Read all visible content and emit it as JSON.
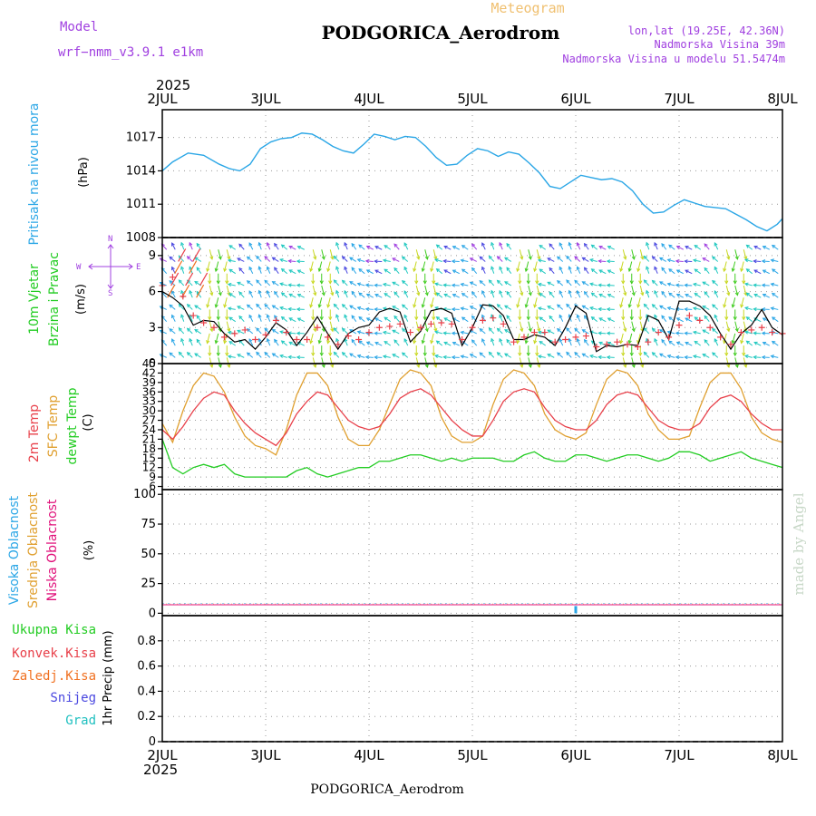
{
  "header": {
    "model_label": "Model",
    "model_name": "wrf−nmm_v3.9.1 e1km",
    "product": "Meteogram",
    "station": "PODGORICA_Aerodrom",
    "coords": "lon,lat (19.25E, 42.36N)",
    "elevation": "Nadmorska Visina 39m",
    "model_elevation": "Nadmorska Visina u modelu 51.5474m",
    "year_top": "2025",
    "year_bottom": "2025",
    "footer_station": "PODGORICA_Aerodrom",
    "credit": "made by Angel"
  },
  "colors": {
    "pressure": "#2aa6e6",
    "temp_2m": "#e8404a",
    "sfc_temp": "#e0a030",
    "dewpoint": "#22cc22",
    "wind_speed": "#000000",
    "gust": "#e8404a",
    "high_cloud": "#2aa6e6",
    "mid_cloud": "#e0a030",
    "low_cloud": "#e0107a",
    "total_precip": "#22cc22",
    "conv_precip": "#e8404a",
    "frozen_precip": "#f07020",
    "snow": "#4a48e0",
    "graupel": "#20c0c0",
    "dir_legend": "#a040e0",
    "credit": "#c8d8c8"
  },
  "x_axis": {
    "tick_labels": [
      "2JUL",
      "3JUL",
      "4JUL",
      "5JUL",
      "6JUL",
      "7JUL",
      "8JUL"
    ]
  },
  "panels": {
    "pressure": {
      "label": "Pritisak na nivou mora",
      "unit": "(hPa)",
      "ticks": [
        1008,
        1011,
        1014,
        1017
      ]
    },
    "wind": {
      "label1": "10m Vjetar",
      "label2": "Brzina i Pravac",
      "unit": "(m/s)",
      "ticks": [
        0,
        3,
        6,
        9
      ],
      "dir_labels": {
        "n": "N",
        "s": "S",
        "e": "E",
        "w": "W"
      }
    },
    "temperature": {
      "label_2m": "2m Temp",
      "label_sfc": "SFC Temp",
      "label_dew": "dewpt Temp",
      "unit": "(C)",
      "ticks": [
        6,
        9,
        12,
        15,
        18,
        21,
        24,
        27,
        30,
        33,
        36,
        39,
        42,
        45
      ]
    },
    "cloud": {
      "label_high": "Visoka Oblacnost",
      "label_mid": "Srednja Oblacnost",
      "label_low": "Niska Oblacnost",
      "unit": "(%)",
      "ticks": [
        0,
        25,
        50,
        75,
        100
      ]
    },
    "precip": {
      "legend_total": "Ukupna Kisa",
      "legend_conv": "Konvek.Kisa",
      "legend_frozen": "Zaledj.Kisa",
      "legend_snow": "Snijeg",
      "legend_graupel": "Grad",
      "unit": "1hr Precip (mm)",
      "ticks": [
        0,
        0.2,
        0.4,
        0.6,
        0.8
      ]
    }
  },
  "chart_data": [
    {
      "type": "line",
      "name": "pressure",
      "x_range": [
        0,
        6
      ],
      "ylim": [
        1008,
        1019.5
      ],
      "x": [
        0,
        0.1,
        0.25,
        0.4,
        0.55,
        0.65,
        0.75,
        0.85,
        0.95,
        1.05,
        1.15,
        1.25,
        1.35,
        1.45,
        1.55,
        1.65,
        1.75,
        1.85,
        1.95,
        2.05,
        2.15,
        2.25,
        2.35,
        2.45,
        2.55,
        2.65,
        2.75,
        2.85,
        2.95,
        3.05,
        3.15,
        3.25,
        3.35,
        3.45,
        3.55,
        3.65,
        3.75,
        3.85,
        3.95,
        4.05,
        4.15,
        4.25,
        4.35,
        4.45,
        4.55,
        4.65,
        4.75,
        4.85,
        4.95,
        5.05,
        5.15,
        5.25,
        5.35,
        5.45,
        5.55,
        5.65,
        5.75,
        5.85,
        5.95,
        6.0
      ],
      "series": [
        {
          "values": [
            1014.0,
            1014.8,
            1015.6,
            1015.4,
            1014.6,
            1014.2,
            1014.0,
            1014.6,
            1016.0,
            1016.6,
            1016.9,
            1017.0,
            1017.4,
            1017.3,
            1016.8,
            1016.2,
            1015.8,
            1015.6,
            1016.4,
            1017.3,
            1017.1,
            1016.8,
            1017.1,
            1017.0,
            1016.2,
            1015.2,
            1014.5,
            1014.6,
            1015.4,
            1016.0,
            1015.8,
            1015.3,
            1015.7,
            1015.5,
            1014.7,
            1013.8,
            1012.6,
            1012.4,
            1013.0,
            1013.6,
            1013.4,
            1013.2,
            1013.3,
            1013.0,
            1012.2,
            1011.0,
            1010.2,
            1010.3,
            1010.9,
            1011.4,
            1011.1,
            1010.8,
            1010.7,
            1010.6,
            1010.1,
            1009.6,
            1009.0,
            1008.6,
            1009.2,
            1009.7
          ]
        }
      ]
    },
    {
      "type": "line",
      "name": "temperature",
      "x_range": [
        0,
        6
      ],
      "ylim": [
        5,
        45
      ],
      "x": [
        0,
        0.1,
        0.2,
        0.3,
        0.4,
        0.5,
        0.6,
        0.7,
        0.8,
        0.9,
        1.0,
        1.1,
        1.2,
        1.3,
        1.4,
        1.5,
        1.6,
        1.7,
        1.8,
        1.9,
        2.0,
        2.1,
        2.2,
        2.3,
        2.4,
        2.5,
        2.6,
        2.7,
        2.8,
        2.9,
        3.0,
        3.1,
        3.2,
        3.3,
        3.4,
        3.5,
        3.6,
        3.7,
        3.8,
        3.9,
        4.0,
        4.1,
        4.2,
        4.3,
        4.4,
        4.5,
        4.6,
        4.7,
        4.8,
        4.9,
        5.0,
        5.1,
        5.2,
        5.3,
        5.4,
        5.5,
        5.6,
        5.7,
        5.8,
        5.9,
        6.0
      ],
      "series": [
        {
          "name": "2m Temp",
          "values": [
            24,
            21,
            25,
            30,
            34,
            36,
            35,
            30,
            26,
            23,
            21,
            19,
            23,
            29,
            33,
            36,
            35,
            31,
            27,
            25,
            24,
            25,
            29,
            34,
            36,
            37,
            35,
            31,
            27,
            24,
            22,
            22,
            27,
            33,
            36,
            37,
            36,
            31,
            27,
            25,
            24,
            24,
            27,
            32,
            35,
            36,
            35,
            31,
            27,
            25,
            24,
            24,
            26,
            31,
            34,
            35,
            33,
            29,
            26,
            24,
            24
          ]
        },
        {
          "name": "SFC Temp",
          "values": [
            26,
            20,
            30,
            38,
            42,
            41,
            36,
            28,
            22,
            19,
            18,
            16,
            24,
            35,
            42,
            42,
            38,
            28,
            21,
            19,
            19,
            24,
            32,
            40,
            43,
            42,
            38,
            28,
            22,
            20,
            20,
            22,
            32,
            40,
            43,
            42,
            38,
            29,
            24,
            22,
            21,
            23,
            32,
            40,
            43,
            42,
            38,
            29,
            24,
            21,
            21,
            22,
            31,
            39,
            42,
            42,
            37,
            28,
            23,
            21,
            20
          ]
        },
        {
          "name": "dewpt Temp",
          "values": [
            21,
            12,
            10,
            12,
            13,
            12,
            13,
            10,
            9,
            9,
            9,
            9,
            9,
            11,
            12,
            10,
            9,
            10,
            11,
            12,
            12,
            14,
            14,
            15,
            16,
            16,
            15,
            14,
            15,
            14,
            15,
            15,
            15,
            14,
            14,
            16,
            17,
            15,
            14,
            14,
            16,
            16,
            15,
            14,
            15,
            16,
            16,
            15,
            14,
            15,
            17,
            17,
            16,
            14,
            15,
            16,
            17,
            15,
            14,
            13,
            12
          ]
        }
      ]
    },
    {
      "type": "line",
      "name": "wind_speed",
      "x_range": [
        0,
        6
      ],
      "ylim": [
        0,
        10.5
      ],
      "x": [
        0,
        0.1,
        0.2,
        0.3,
        0.4,
        0.5,
        0.6,
        0.7,
        0.8,
        0.9,
        1.0,
        1.1,
        1.2,
        1.3,
        1.4,
        1.5,
        1.6,
        1.7,
        1.8,
        1.9,
        2.0,
        2.1,
        2.2,
        2.3,
        2.4,
        2.5,
        2.6,
        2.7,
        2.8,
        2.9,
        3.0,
        3.1,
        3.2,
        3.3,
        3.4,
        3.5,
        3.6,
        3.7,
        3.8,
        3.9,
        4.0,
        4.1,
        4.2,
        4.3,
        4.4,
        4.5,
        4.6,
        4.7,
        4.8,
        4.9,
        5.0,
        5.1,
        5.2,
        5.3,
        5.4,
        5.5,
        5.6,
        5.7,
        5.8,
        5.9,
        6.0
      ],
      "series": [
        {
          "name": "speed",
          "values": [
            6.0,
            5.5,
            4.8,
            3.2,
            3.6,
            3.5,
            2.5,
            1.8,
            2.0,
            1.2,
            2.2,
            3.4,
            2.8,
            1.5,
            2.6,
            3.9,
            2.5,
            1.2,
            2.5,
            3.0,
            3.2,
            4.3,
            4.6,
            4.3,
            1.8,
            2.7,
            4.4,
            4.6,
            4.2,
            1.5,
            3.0,
            4.9,
            4.8,
            4.0,
            2.0,
            2.0,
            2.4,
            2.2,
            1.5,
            3.0,
            4.8,
            4.2,
            1.0,
            1.5,
            1.4,
            1.6,
            1.5,
            4.0,
            3.6,
            2.0,
            5.2,
            5.2,
            4.8,
            4.0,
            2.5,
            1.2,
            2.5,
            3.2,
            4.5,
            3.0,
            2.4
          ]
        },
        {
          "name": "gust",
          "values": [
            6.5,
            7.2,
            5.6,
            4.0,
            3.4,
            3.0,
            2.2,
            2.5,
            2.8,
            2.0,
            2.4,
            3.6,
            2.6,
            2.0,
            2.0,
            3.0,
            2.2,
            1.6,
            2.3,
            2.0,
            2.6,
            3.0,
            3.1,
            3.3,
            2.6,
            3.0,
            3.3,
            3.4,
            3.3,
            2.0,
            3.0,
            3.6,
            3.8,
            3.3,
            1.8,
            2.2,
            2.6,
            2.6,
            1.8,
            2.0,
            2.2,
            2.3,
            1.4,
            1.6,
            1.8,
            1.6,
            1.4,
            1.8,
            2.6,
            2.2,
            3.2,
            4.0,
            3.6,
            3.0,
            2.2,
            1.6,
            2.6,
            2.8,
            3.0,
            2.6,
            2.5
          ]
        }
      ]
    },
    {
      "type": "bar",
      "name": "cloud_cover",
      "x_range": [
        0,
        6
      ],
      "ylim": [
        -2,
        104
      ],
      "series": [
        {
          "name": "Visoka Oblacnost",
          "x": [
            4.0
          ],
          "values": [
            3
          ]
        }
      ]
    },
    {
      "type": "bar",
      "name": "precipitation",
      "x_range": [
        0,
        6
      ],
      "ylim": [
        0,
        1.0
      ],
      "series": []
    }
  ]
}
